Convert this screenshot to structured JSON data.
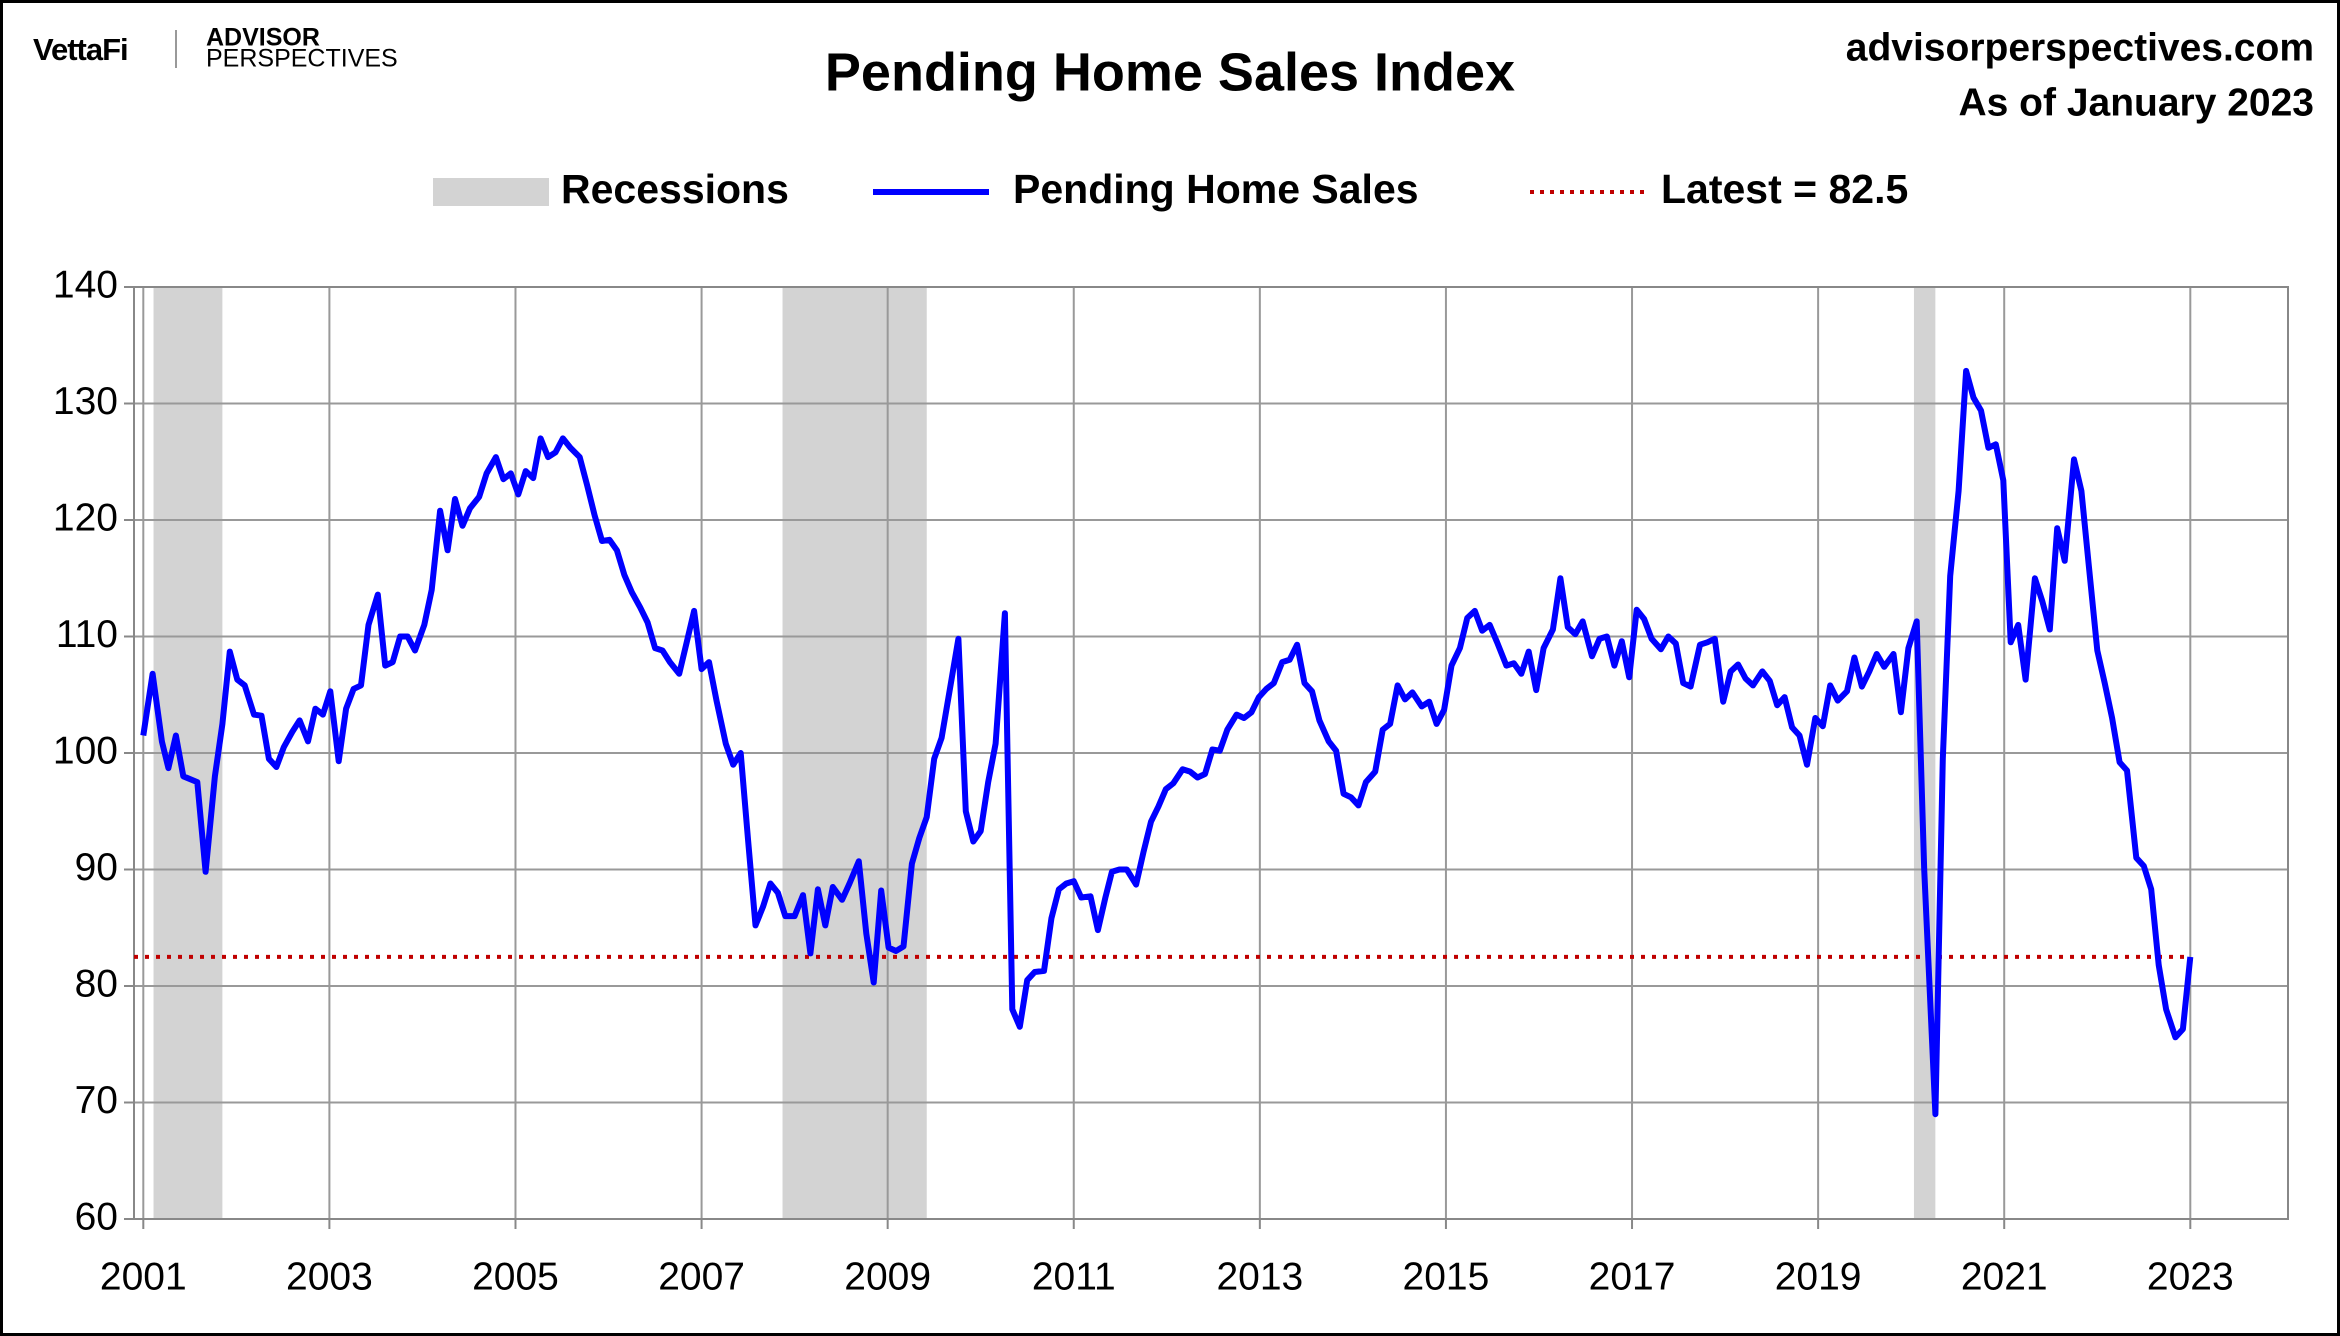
{
  "chart_data": {
    "type": "line",
    "title": "Pending Home Sales Index",
    "source": "advisorperspectives.com",
    "note": "As of January 2023",
    "logo": {
      "brand": "VettaFi",
      "line1": "ADVISOR",
      "line2": "PERSPECTIVES"
    },
    "xlim": [
      2000.9,
      2024.05
    ],
    "xticks": [
      2001,
      2003,
      2005,
      2007,
      2009,
      2011,
      2013,
      2015,
      2017,
      2019,
      2021,
      2023
    ],
    "ylim": [
      60,
      140
    ],
    "yticks": [
      60,
      70,
      80,
      90,
      100,
      110,
      120,
      130,
      140
    ],
    "grid": true,
    "recessions": {
      "name": "Recessions",
      "color": "#d3d3d3",
      "spans": [
        [
          2001.11,
          2001.85
        ],
        [
          2007.87,
          2009.42
        ],
        [
          2020.03,
          2020.26
        ]
      ]
    },
    "latest": {
      "name": "Latest = 82.5",
      "value": 82.5,
      "color": "#c00000"
    },
    "x": [
      2001.0,
      2001.1,
      2001.2,
      2001.27,
      2001.35,
      2001.43,
      2001.58,
      2001.67,
      2001.77,
      2001.85,
      2001.93,
      2002.01,
      2002.09,
      2002.19,
      2002.27,
      2002.35,
      2002.43,
      2002.51,
      2002.6,
      2002.68,
      2002.77,
      2002.85,
      2002.93,
      2003.01,
      2003.1,
      2003.18,
      2003.26,
      2003.34,
      2003.42,
      2003.52,
      2003.6,
      2003.68,
      2003.76,
      2003.84,
      2003.92,
      2004.02,
      2004.1,
      2004.19,
      2004.27,
      2004.35,
      2004.43,
      2004.51,
      2004.61,
      2004.69,
      2004.79,
      2004.87,
      2004.95,
      2005.03,
      2005.11,
      2005.19,
      2005.27,
      2005.35,
      2005.43,
      2005.51,
      2005.59,
      2005.69,
      2005.77,
      2005.85,
      2005.93,
      2006.01,
      2006.09,
      2006.17,
      2006.25,
      2006.34,
      2006.42,
      2006.5,
      2006.58,
      2006.66,
      2006.76,
      2006.84,
      2006.92,
      2007.0,
      2007.08,
      2007.16,
      2007.26,
      2007.34,
      2007.42,
      2007.5,
      2007.58,
      2007.66,
      2007.74,
      2007.82,
      2007.9,
      2008.0,
      2008.09,
      2008.17,
      2008.25,
      2008.33,
      2008.41,
      2008.51,
      2008.59,
      2008.69,
      2008.77,
      2008.85,
      2008.93,
      2009.01,
      2009.09,
      2009.17,
      2009.26,
      2009.34,
      2009.42,
      2009.5,
      2009.58,
      2009.68,
      2009.76,
      2009.84,
      2009.92,
      2010.0,
      2010.08,
      2010.16,
      2010.26,
      2010.34,
      2010.42,
      2010.5,
      2010.58,
      2010.68,
      2010.76,
      2010.84,
      2010.92,
      2011.0,
      2011.08,
      2011.18,
      2011.26,
      2011.34,
      2011.41,
      2011.49,
      2011.57,
      2011.67,
      2011.75,
      2011.83,
      2011.91,
      2011.99,
      2012.07,
      2012.17,
      2012.25,
      2012.33,
      2012.41,
      2012.49,
      2012.57,
      2012.65,
      2012.75,
      2012.83,
      2012.91,
      2012.99,
      2013.07,
      2013.15,
      2013.24,
      2013.32,
      2013.4,
      2013.48,
      2013.56,
      2013.64,
      2013.74,
      2013.82,
      2013.9,
      2013.98,
      2014.06,
      2014.14,
      2014.24,
      2014.32,
      2014.4,
      2014.48,
      2014.56,
      2014.64,
      2014.74,
      2014.82,
      2014.9,
      2014.98,
      2015.06,
      2015.15,
      2015.23,
      2015.31,
      2015.39,
      2015.47,
      2015.55,
      2015.65,
      2015.73,
      2015.81,
      2015.89,
      2015.97,
      2016.05,
      2016.15,
      2016.23,
      2016.31,
      2016.39,
      2016.47,
      2016.57,
      2016.65,
      2016.73,
      2016.81,
      2016.89,
      2016.97,
      2017.05,
      2017.13,
      2017.21,
      2017.31,
      2017.39,
      2017.47,
      2017.55,
      2017.63,
      2017.73,
      2017.81,
      2017.89,
      2017.98,
      2018.06,
      2018.14,
      2018.22,
      2018.3,
      2018.4,
      2018.48,
      2018.56,
      2018.64,
      2018.72,
      2018.8,
      2018.88,
      2018.97,
      2019.05,
      2019.13,
      2019.21,
      2019.31,
      2019.39,
      2019.47,
      2019.55,
      2019.63,
      2019.71,
      2019.81,
      2019.89,
      2019.97,
      2020.06,
      2020.14,
      2020.26,
      2020.34,
      2020.42,
      2020.51,
      2020.59,
      2020.67,
      2020.75,
      2020.83,
      2020.91,
      2020.99,
      2021.07,
      2021.15,
      2021.23,
      2021.33,
      2021.41,
      2021.49,
      2021.57,
      2021.65,
      2021.75,
      2021.83,
      2021.91,
      2022.0,
      2022.08,
      2022.16,
      2022.24,
      2022.32,
      2022.42,
      2022.5,
      2022.58,
      2022.66,
      2022.74,
      2022.84,
      2022.92,
      2023.0
    ],
    "series": [
      {
        "name": "Pending Home Sales",
        "color": "#0000ff",
        "values": [
          101.5,
          106.8,
          101,
          98.7,
          101.5,
          98,
          97.5,
          89.8,
          98,
          102.5,
          108.7,
          106.3,
          105.8,
          103.3,
          103.2,
          99.5,
          98.8,
          100.5,
          101.8,
          102.8,
          101,
          103.8,
          103.3,
          105.3,
          99.3,
          103.8,
          105.5,
          105.8,
          111,
          113.6,
          107.5,
          107.8,
          110,
          110,
          108.8,
          111,
          114,
          120.8,
          117.4,
          121.8,
          119.5,
          121,
          122,
          124,
          125.4,
          123.5,
          124,
          122.2,
          124.2,
          123.6,
          127,
          125.4,
          125.8,
          127,
          126.2,
          125.4,
          123,
          120.4,
          118.2,
          118.3,
          117.4,
          115.3,
          113.8,
          112.5,
          111.2,
          109,
          108.8,
          107.8,
          106.8,
          109.5,
          112.2,
          107.2,
          107.8,
          104.5,
          100.8,
          99,
          100,
          92.5,
          85.2,
          86.8,
          88.8,
          88,
          86,
          86,
          87.8,
          82.8,
          88.3,
          85.2,
          88.5,
          87.4,
          88.8,
          90.7,
          84.5,
          80.3,
          88.2,
          83.3,
          83,
          83.4,
          90.5,
          92.7,
          94.5,
          99.5,
          101.3,
          106,
          109.8,
          95,
          92.4,
          93.3,
          97.5,
          100.8,
          112,
          78,
          76.5,
          80.5,
          81.2,
          81.3,
          85.8,
          88.3,
          88.8,
          89,
          87.6,
          87.7,
          84.8,
          87.6,
          89.8,
          90,
          90,
          88.7,
          91.5,
          94.1,
          95.4,
          96.9,
          97.4,
          98.6,
          98.4,
          97.9,
          98.2,
          100.3,
          100.2,
          102,
          103.3,
          103,
          103.5,
          104.8,
          105.5,
          106,
          107.8,
          108,
          109.3,
          106,
          105.3,
          102.8,
          101,
          100.2,
          96.5,
          96.2,
          95.5,
          97.5,
          98.4,
          102,
          102.5,
          105.8,
          104.6,
          105.2,
          104,
          104.4,
          102.5,
          103.7,
          107.5,
          109,
          111.6,
          112.2,
          110.5,
          111,
          109.5,
          107.5,
          107.7,
          106.8,
          108.7,
          105.4,
          109,
          110.6,
          115,
          110.8,
          110.2,
          111.3,
          108.3,
          109.8,
          110,
          107.5,
          109.6,
          106.5,
          112.3,
          111.5,
          109.8,
          108.9,
          110,
          109.4,
          106,
          105.7,
          109.3,
          109.5,
          109.8,
          104.4,
          107,
          107.6,
          106.4,
          105.8,
          107,
          106.2,
          104.1,
          104.8,
          102.2,
          101.5,
          99,
          103,
          102.3,
          105.8,
          104.5,
          105.3,
          108.2,
          105.7,
          107,
          108.5,
          107.4,
          108.5,
          103.5,
          109,
          111.3,
          90,
          69,
          99.5,
          115.2,
          122.5,
          132.8,
          130.5,
          129.4,
          126.2,
          126.5,
          123.4,
          109.5,
          111,
          106.3,
          115,
          113,
          110.6,
          119.3,
          116.5,
          125.2,
          122.5,
          116,
          108.8,
          106,
          103,
          99.2,
          98.5,
          91,
          90.3,
          88.3,
          81.8,
          78,
          75.6,
          76.3,
          82.5
        ]
      }
    ]
  }
}
